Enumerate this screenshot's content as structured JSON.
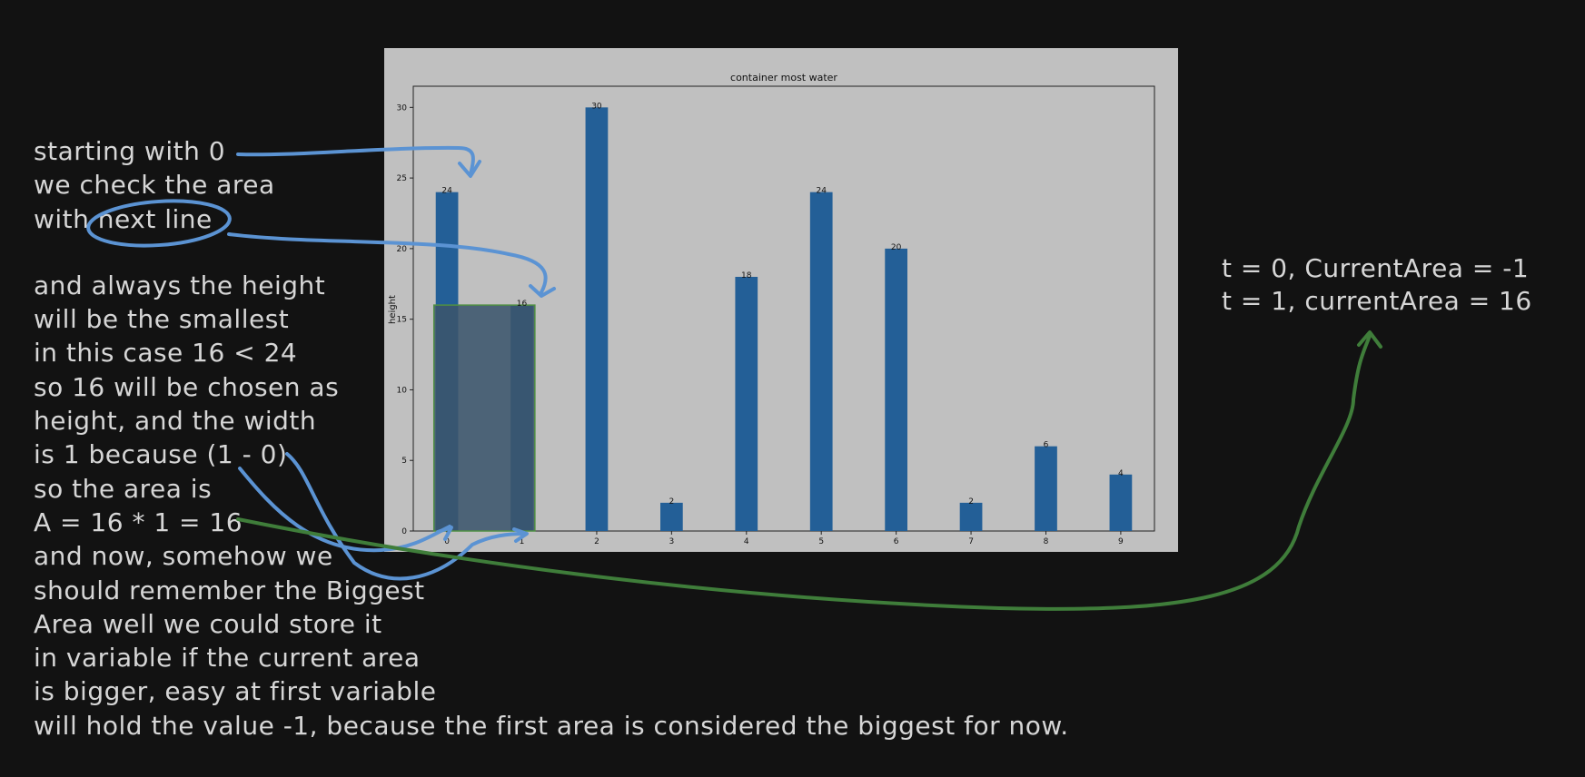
{
  "chart_data": {
    "type": "bar",
    "title": "container most water",
    "xlabel": "",
    "ylabel": "height",
    "categories": [
      "0",
      "1",
      "2",
      "3",
      "4",
      "5",
      "6",
      "7",
      "8",
      "9"
    ],
    "values": [
      24,
      16,
      30,
      2,
      18,
      24,
      20,
      2,
      6,
      4
    ],
    "ylim": [
      0,
      31.5
    ],
    "yticks": [
      0,
      5,
      10,
      15,
      20,
      25,
      30
    ],
    "bar_color": "#235f97",
    "data_labels": true,
    "grid": false,
    "highlight": {
      "bars": [
        "0",
        "1"
      ],
      "height": 16,
      "color": "#3b556c",
      "border": "#4f8f43"
    }
  },
  "annotations": {
    "left_block_1": [
      "starting with 0",
      "we check the area",
      "with next line"
    ],
    "left_block_2": [
      "and always the height",
      "will be the smallest",
      "in this case 16 < 24",
      "so 16 will be chosen as",
      "height, and the width",
      "is 1 because (1 - 0)",
      "so the area is",
      "A = 16 * 1 = 16",
      "and now, somehow we",
      "should remember the Biggest",
      "Area well we could store it",
      "in variable if the current area",
      "is bigger, easy at first variable",
      "will hold the value -1, because the first area is considered the biggest for now."
    ],
    "right_block": [
      "t = 0, CurrentArea = -1",
      "t = 1, currentArea = 16"
    ]
  },
  "colors": {
    "background": "#121212",
    "chart_panel": "#c0c0c0",
    "handwriting": "#d6d6d6",
    "arrow_blue": "#5b93d3",
    "arrow_green": "#3f7d3a"
  }
}
